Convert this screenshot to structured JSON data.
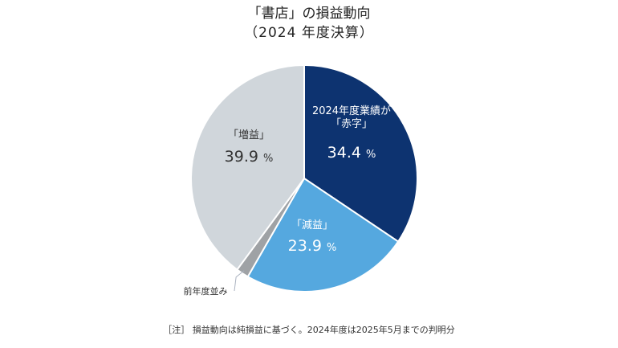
{
  "title_line1": "「書店」の損益動向",
  "title_line2": "（2024 年度決算）",
  "note": "［注］ 損益動向は純損益に基づく。2024年度は2025年5月までの判明分",
  "chart_data": {
    "type": "pie",
    "slices": [
      {
        "label_lines": [
          "2024年度業績が",
          "「赤字」"
        ],
        "value": 34.4,
        "display": "34.4",
        "color": "#0d3370",
        "text_color": "#ffffff"
      },
      {
        "label_lines": [
          "「減益」"
        ],
        "value": 23.9,
        "display": "23.9",
        "color": "#55a8df",
        "text_color": "#ffffff"
      },
      {
        "label_lines": [
          "前年度並み"
        ],
        "value": 1.8,
        "display": "",
        "color": "#9fa2a5",
        "text_color": "#333333"
      },
      {
        "label_lines": [
          "「増益」"
        ],
        "value": 39.9,
        "display": "39.9",
        "color": "#d0d6db",
        "text_color": "#333333"
      }
    ],
    "unit": "%"
  }
}
